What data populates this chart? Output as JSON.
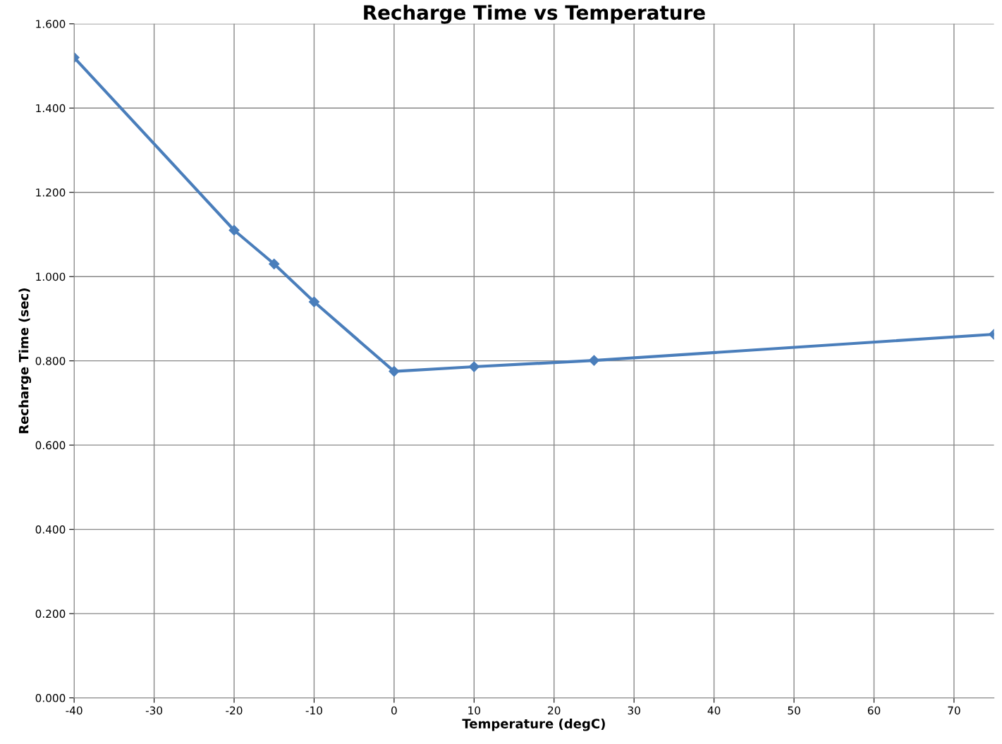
{
  "chart_data": {
    "type": "line",
    "title": "Recharge Time vs Temperature",
    "xlabel": "Temperature (degC)",
    "ylabel": "Recharge Time (sec)",
    "x": [
      -40,
      -20,
      -15,
      -10,
      0,
      10,
      25,
      75
    ],
    "series": [
      {
        "color": "#4a7ebb",
        "values": [
          1.52,
          1.11,
          1.03,
          0.94,
          0.775,
          0.786,
          0.801,
          0.863
        ]
      }
    ],
    "xlim": [
      -40,
      75
    ],
    "xticks": [
      -40,
      -30,
      -20,
      -10,
      0,
      10,
      20,
      30,
      40,
      50,
      60,
      70
    ],
    "ylim": [
      0,
      1.6
    ],
    "yticks": [
      {
        "value": 0,
        "label": "0.000"
      },
      {
        "value": 0.2,
        "label": "0.200"
      },
      {
        "value": 0.4,
        "label": "0.400"
      },
      {
        "value": 0.6,
        "label": "0.600"
      },
      {
        "value": 0.8,
        "label": "0.800"
      },
      {
        "value": 1.0,
        "label": "1.000"
      },
      {
        "value": 1.2,
        "label": "1.200"
      },
      {
        "value": 1.4,
        "label": "1.400"
      },
      {
        "value": 1.6,
        "label": "1.600"
      }
    ],
    "grid": true,
    "marker": "diamond",
    "line_style": "solid"
  }
}
